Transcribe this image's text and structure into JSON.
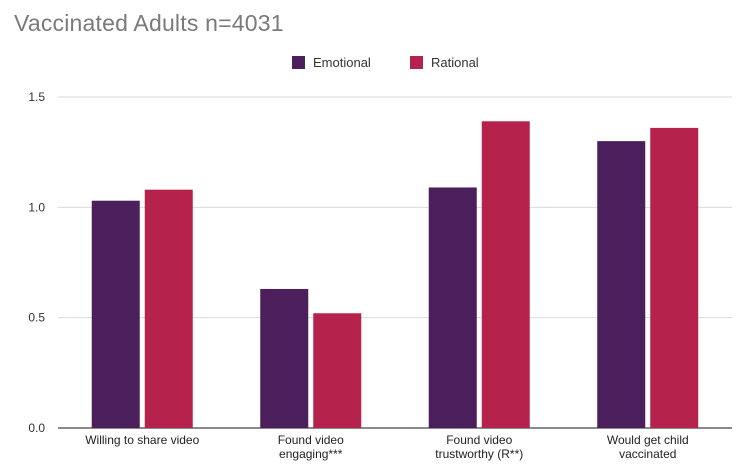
{
  "chart_data": {
    "type": "bar",
    "title": "Vaccinated Adults n=4031",
    "categories": [
      [
        "Willing to share video"
      ],
      [
        "Found video",
        "engaging***"
      ],
      [
        "Found video",
        "trustworthy (R**)"
      ],
      [
        "Would get child",
        "vaccinated"
      ]
    ],
    "series": [
      {
        "name": "Emotional",
        "color": "#4a1f5c",
        "values": [
          1.03,
          0.63,
          1.09,
          1.3
        ]
      },
      {
        "name": "Rational",
        "color": "#b5234d",
        "values": [
          1.08,
          0.52,
          1.39,
          1.36
        ]
      }
    ],
    "yticks": [
      "0.0",
      "0.5",
      "1.0",
      "1.5"
    ],
    "ylim": [
      0,
      1.5
    ],
    "grid": true,
    "legend_position": "top-center",
    "xlabel": "",
    "ylabel": ""
  }
}
